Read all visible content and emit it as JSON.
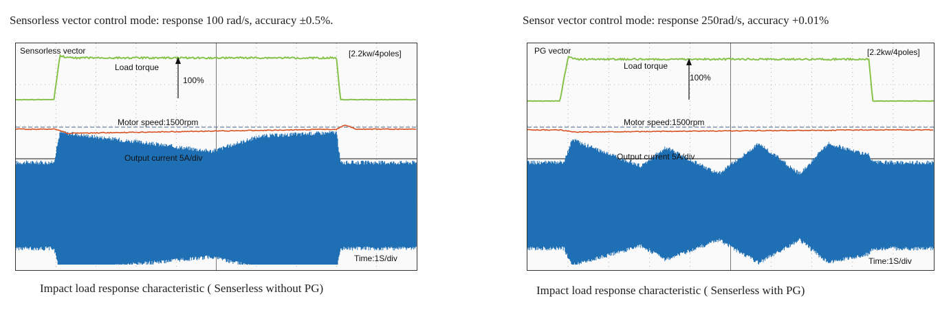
{
  "panels": [
    {
      "heading": "Sensorless vector control mode: response 100 rad/s, accuracy ±0.5%.",
      "caption": "Impact load response characteristic ( Senserless without PG)",
      "scope_label": "Sensorless vector",
      "rating": "[2.2kw/4poles]",
      "torque_label": "Load torque",
      "step_label": "100%",
      "speed_label": "Motor speed:1500rpm",
      "current_label": "Output current 5A/div",
      "time_label": "Time:1S/div"
    },
    {
      "heading": "Sensor vector control mode: response 250rad/s, accuracy +0.01%",
      "caption": "Impact load response characteristic ( Senserless with PG)",
      "scope_label": "PG vector",
      "rating": "[2.2kw/4poles]",
      "torque_label": "Load torque",
      "step_label": "100%",
      "speed_label": "Motor speed:1500rpm",
      "current_label": "Output current 5A/div",
      "time_label": "Time:1S/div"
    }
  ],
  "colors": {
    "torque": "#86c24a",
    "speed": "#d8501f",
    "speed_ref": "#6a7f9a",
    "current": "#1f6fb5",
    "grid": "#555555"
  },
  "chart_data": [
    {
      "type": "line",
      "title": "Sensorless vector",
      "series": [
        {
          "name": "Load torque",
          "time_div": [
            0,
            0.95,
            1.1,
            1.3,
            8.0,
            8.1,
            8.3,
            10
          ],
          "level_pct": [
            0,
            0,
            100,
            95,
            95,
            0,
            0,
            0
          ]
        },
        {
          "name": "Motor speed:1500rpm",
          "time_div": [
            0,
            1,
            1.3,
            8,
            8.2,
            8.5,
            10
          ],
          "deviation_pct": [
            0,
            0,
            -1.5,
            0,
            1.5,
            0,
            0
          ]
        },
        {
          "name": "Output current 5A/div",
          "time_div": [
            0,
            0.95,
            1.1,
            4.9,
            6.1,
            8.0,
            8.1,
            10
          ],
          "amplitude_div": [
            1.3,
            1.3,
            2.1,
            1.6,
            2.0,
            2.1,
            1.3,
            1.3
          ]
        }
      ]
    },
    {
      "type": "line",
      "title": "PG vector",
      "series": [
        {
          "name": "Load torque",
          "time_div": [
            0,
            0.8,
            1.0,
            1.2,
            8.4,
            8.5,
            8.7,
            10
          ],
          "level_pct": [
            0,
            0,
            100,
            95,
            95,
            0,
            0,
            0
          ]
        },
        {
          "name": "Motor speed:1500rpm",
          "time_div": [
            0,
            0.8,
            1.2,
            8.4,
            10
          ],
          "deviation_pct": [
            0,
            0,
            -0.8,
            0,
            0
          ]
        },
        {
          "name": "Output current 5A/div",
          "time_div": [
            0,
            0.9,
            1.1,
            2.8,
            3.4,
            4.7,
            5.7,
            6.7,
            7.4,
            8.4,
            8.5,
            10
          ],
          "amplitude_div": [
            1.3,
            1.3,
            1.9,
            1.2,
            1.7,
            1.0,
            1.8,
            1.0,
            1.8,
            1.5,
            1.3,
            1.3
          ]
        }
      ]
    }
  ]
}
